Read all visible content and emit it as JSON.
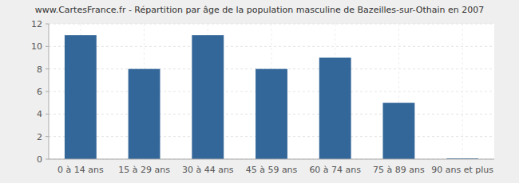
{
  "chart_data": {
    "type": "bar",
    "title": "www.CartesFrance.fr - Répartition par âge de la population masculine de Bazeilles-sur-Othain en 2007",
    "categories": [
      "0 à 14 ans",
      "15 à 29 ans",
      "30 à 44 ans",
      "45 à 59 ans",
      "60 à 74 ans",
      "75 à 89 ans",
      "90 ans et plus"
    ],
    "values": [
      11,
      8,
      11,
      8,
      9,
      5,
      0
    ],
    "color": "#336699",
    "ylim": [
      0,
      12
    ],
    "yticks": [
      0,
      2,
      4,
      6,
      8,
      10,
      12
    ],
    "grid": true
  }
}
